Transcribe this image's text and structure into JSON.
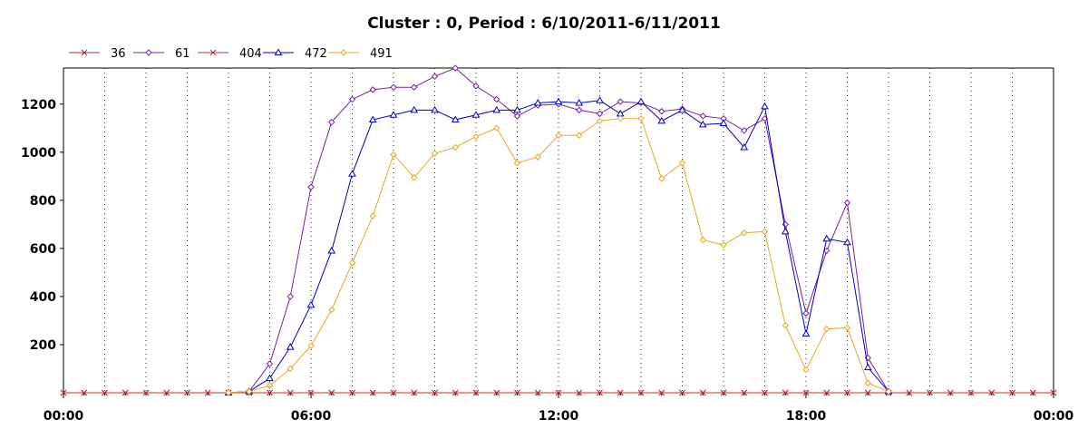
{
  "chart_data": {
    "type": "line",
    "title": "Cluster : 0, Period : 6/10/2011-6/11/2011",
    "xlabel": "",
    "ylabel": "",
    "x_ticks": [
      "00:00",
      "06:00",
      "12:00",
      "18:00",
      "00:00"
    ],
    "y_ticks": [
      200,
      400,
      600,
      800,
      1000,
      1200
    ],
    "xlim_hours": [
      0,
      24
    ],
    "ylim": [
      0,
      1350
    ],
    "grid": "vertical dotted",
    "legend": "top-left",
    "x_hours": [
      0,
      0.5,
      1,
      1.5,
      2,
      2.5,
      3,
      3.5,
      4,
      4.5,
      5,
      5.5,
      6,
      6.5,
      7,
      7.5,
      8,
      8.5,
      9,
      9.5,
      10,
      10.5,
      11,
      11.5,
      12,
      12.5,
      13,
      13.5,
      14,
      14.5,
      15,
      15.5,
      16,
      16.5,
      17,
      17.5,
      18,
      18.5,
      19,
      19.5,
      20,
      20.5,
      21,
      21.5,
      22,
      22.5,
      23,
      23.5,
      24
    ],
    "series": [
      {
        "name": "36",
        "color": "#a03030",
        "marker": "x",
        "values": [
          0,
          0,
          0,
          0,
          0,
          0,
          0,
          0,
          0,
          0,
          0,
          0,
          0,
          0,
          0,
          0,
          0,
          0,
          0,
          0,
          0,
          0,
          0,
          0,
          0,
          0,
          0,
          0,
          0,
          0,
          0,
          0,
          0,
          0,
          0,
          0,
          0,
          0,
          0,
          0,
          0,
          0,
          0,
          0,
          0,
          0,
          0,
          0,
          0
        ]
      },
      {
        "name": "61",
        "color": "#7a1fa2",
        "marker": "diamond",
        "values": [
          null,
          null,
          null,
          null,
          null,
          null,
          null,
          null,
          0,
          5,
          120,
          400,
          855,
          1125,
          1220,
          1260,
          1270,
          1270,
          1315,
          1350,
          1275,
          1220,
          1150,
          1195,
          1200,
          1175,
          1160,
          1210,
          1205,
          1170,
          1180,
          1150,
          1140,
          1090,
          1140,
          700,
          330,
          590,
          790,
          145,
          5,
          null,
          null,
          null,
          null,
          null,
          null,
          null,
          null
        ]
      },
      {
        "name": "404",
        "color": "#c03030",
        "marker": "x",
        "values": [
          0,
          0,
          0,
          0,
          0,
          0,
          0,
          0,
          0,
          0,
          0,
          0,
          0,
          0,
          0,
          0,
          0,
          0,
          0,
          0,
          0,
          0,
          0,
          0,
          0,
          0,
          0,
          0,
          0,
          0,
          0,
          0,
          0,
          0,
          0,
          0,
          0,
          0,
          0,
          0,
          0,
          0,
          0,
          0,
          0,
          0,
          0,
          0,
          0
        ]
      },
      {
        "name": "472",
        "color": "#0000cc",
        "marker": "triangle",
        "values": [
          null,
          null,
          null,
          null,
          null,
          null,
          null,
          null,
          0,
          5,
          60,
          190,
          365,
          590,
          910,
          1135,
          1155,
          1175,
          1175,
          1135,
          1155,
          1175,
          1175,
          1205,
          1210,
          1205,
          1215,
          1160,
          1210,
          1130,
          1175,
          1115,
          1120,
          1020,
          1190,
          670,
          245,
          640,
          625,
          105,
          5,
          null,
          null,
          null,
          null,
          null,
          null,
          null,
          null
        ]
      },
      {
        "name": "491",
        "color": "#e8a820",
        "marker": "diamond",
        "values": [
          null,
          null,
          null,
          null,
          null,
          null,
          null,
          null,
          0,
          5,
          30,
          100,
          195,
          345,
          540,
          735,
          990,
          895,
          995,
          1020,
          1065,
          1100,
          955,
          980,
          1070,
          1070,
          1130,
          1140,
          1140,
          890,
          955,
          635,
          615,
          665,
          670,
          280,
          95,
          265,
          270,
          40,
          5,
          null,
          null,
          null,
          null,
          null,
          null,
          null,
          null
        ]
      }
    ]
  }
}
